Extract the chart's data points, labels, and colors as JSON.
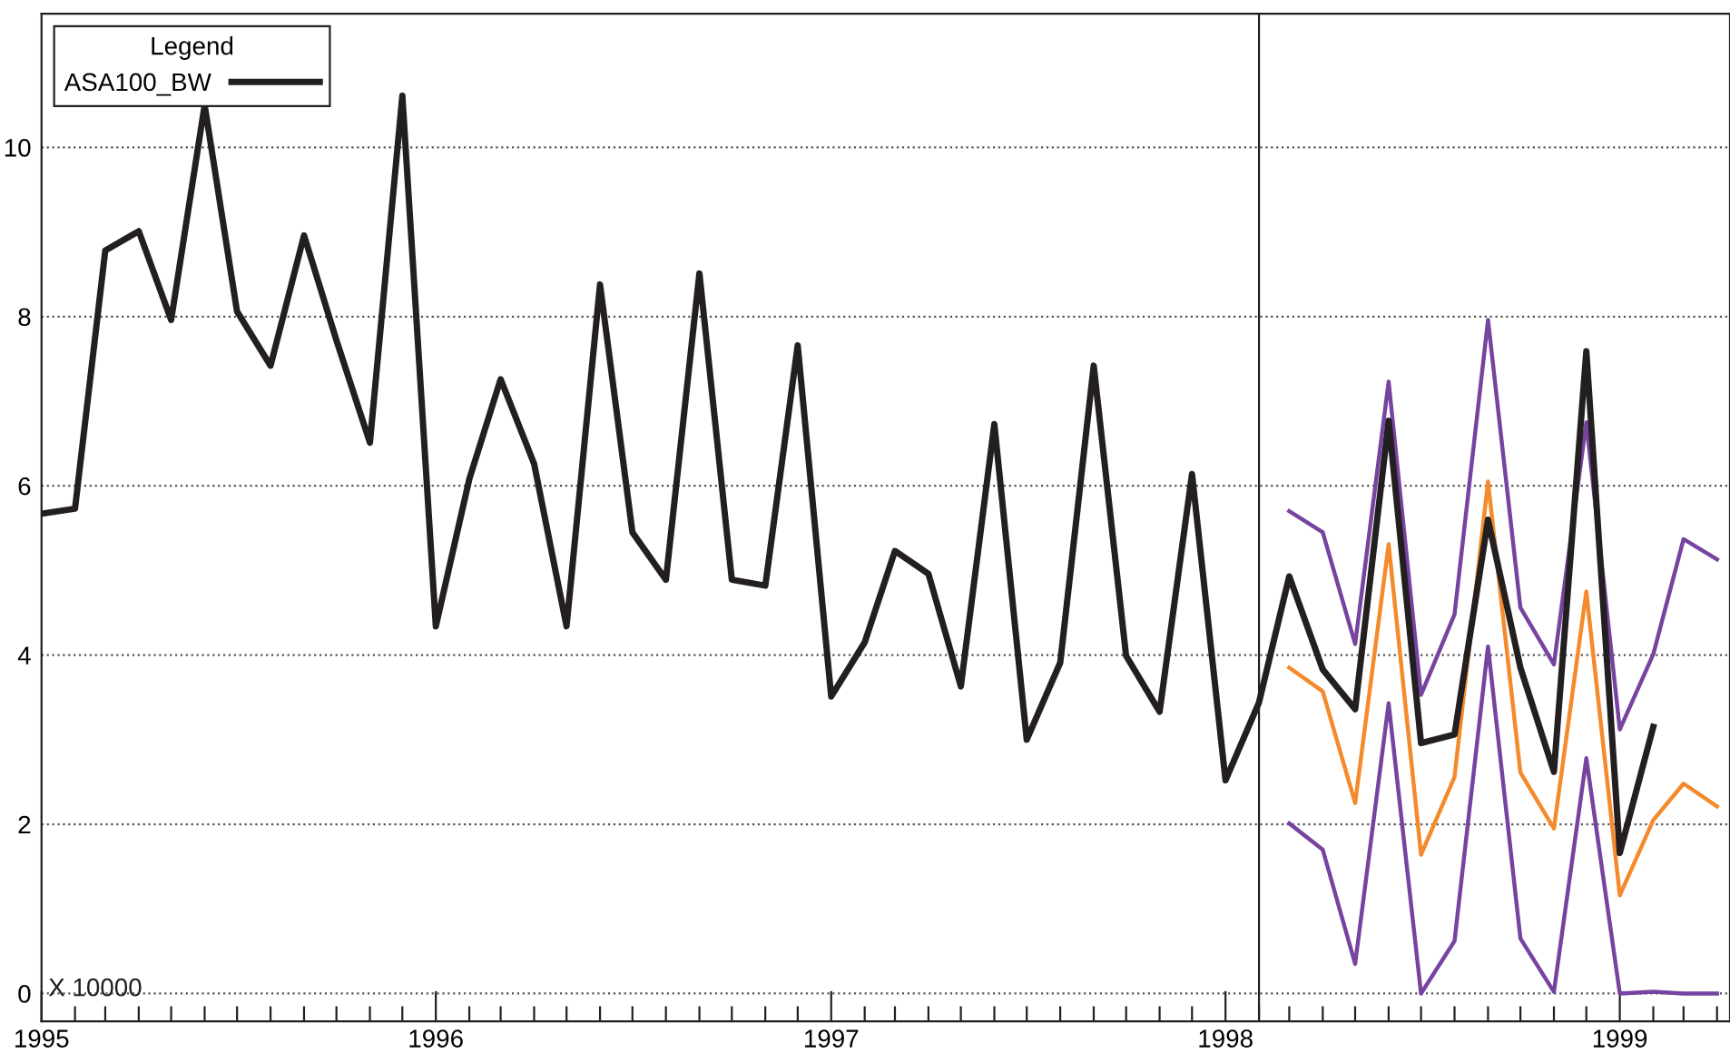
{
  "chart_data": {
    "type": "line",
    "legend_title": "Legend",
    "annotations": [
      "X 10000"
    ],
    "series": [
      {
        "name": "ASA100_BW",
        "color": "#231f20",
        "x": [
          "1995-01",
          "1995-02",
          "1995-03",
          "1995-04",
          "1995-05",
          "1995-06",
          "1995-07",
          "1995-08",
          "1995-09",
          "1995-10",
          "1995-11",
          "1995-12",
          "1996-01",
          "1996-02",
          "1996-03",
          "1996-04",
          "1996-05",
          "1996-06",
          "1996-07",
          "1996-08",
          "1996-09",
          "1996-10",
          "1996-11",
          "1996-12",
          "1997-01",
          "1997-02",
          "1997-03",
          "1997-04",
          "1997-05",
          "1997-06",
          "1997-07",
          "1997-08",
          "1997-09",
          "1997-10",
          "1997-11",
          "1997-12",
          "1998-01",
          "1998-02",
          "1998-03",
          "1998-04",
          "1998-05",
          "1998-06",
          "1998-07",
          "1998-08",
          "1998-09",
          "1998-10",
          "1998-11",
          "1998-12",
          "1999-01",
          "1999-02"
        ],
        "values": [
          5.67,
          5.73,
          8.78,
          9.01,
          7.96,
          10.5,
          8.06,
          7.42,
          8.96,
          7.72,
          6.51,
          10.61,
          4.34,
          6.08,
          7.26,
          6.26,
          4.34,
          8.38,
          5.45,
          4.89,
          8.51,
          4.89,
          4.82,
          7.66,
          3.51,
          4.15,
          5.23,
          4.96,
          3.63,
          6.73,
          3.0,
          3.91,
          7.42,
          3.99,
          3.33,
          6.14,
          2.52,
          3.44,
          4.93,
          3.83,
          3.36,
          6.77,
          2.96,
          3.06,
          5.6,
          3.85,
          2.62,
          7.59,
          1.66,
          3.15
        ]
      },
      {
        "color": "#f58a2c",
        "x": [
          "1998-03",
          "1998-04",
          "1998-05",
          "1998-06",
          "1998-07",
          "1998-08",
          "1998-09",
          "1998-10",
          "1998-11",
          "1998-12",
          "1999-01",
          "1999-02",
          "1999-03",
          "1999-04"
        ],
        "values": [
          3.85,
          3.57,
          2.25,
          5.31,
          1.64,
          2.56,
          6.05,
          2.61,
          1.95,
          4.75,
          1.16,
          2.05,
          2.48,
          2.21
        ]
      },
      {
        "color": "#7643a0",
        "x": [
          "1998-03",
          "1998-04",
          "1998-05",
          "1998-06",
          "1998-07",
          "1998-08",
          "1998-09",
          "1998-10",
          "1998-11",
          "1998-12",
          "1999-01",
          "1999-02",
          "1999-03",
          "1999-04"
        ],
        "values": [
          5.7,
          5.45,
          4.13,
          7.23,
          3.53,
          4.48,
          7.96,
          4.56,
          3.89,
          6.75,
          3.12,
          4.01,
          5.37,
          5.13
        ]
      },
      {
        "color": "#7643a0",
        "x": [
          "1998-03",
          "1998-04",
          "1998-05",
          "1998-06",
          "1998-07",
          "1998-08",
          "1998-09",
          "1998-10",
          "1998-11",
          "1998-12",
          "1999-01",
          "1999-02",
          "1999-03",
          "1999-04"
        ],
        "values": [
          2.01,
          1.7,
          0.35,
          3.43,
          0.0,
          0.62,
          4.1,
          0.65,
          0.02,
          2.78,
          0.0,
          0.02,
          0.0,
          0.0
        ]
      }
    ],
    "ylim": [
      -0.33,
      11.58
    ],
    "yticks": [
      0,
      2,
      4,
      6,
      8,
      10
    ],
    "xlim": [
      "1995-01",
      "1999-04-13"
    ],
    "xticks": [
      {
        "value": "1995-01",
        "label": "1995"
      },
      {
        "value": "1995-02",
        "label": null
      },
      {
        "value": "1995-03",
        "label": null
      },
      {
        "value": "1995-04",
        "label": null
      },
      {
        "value": "1995-05",
        "label": null
      },
      {
        "value": "1995-06",
        "label": null
      },
      {
        "value": "1995-07",
        "label": null
      },
      {
        "value": "1995-08",
        "label": null
      },
      {
        "value": "1995-09",
        "label": null
      },
      {
        "value": "1995-10",
        "label": null
      },
      {
        "value": "1995-11",
        "label": null
      },
      {
        "value": "1995-12",
        "label": null
      },
      {
        "value": "1996-01",
        "label": "1996"
      },
      {
        "value": "1996-02",
        "label": null
      },
      {
        "value": "1996-03",
        "label": null
      },
      {
        "value": "1996-04",
        "label": null
      },
      {
        "value": "1996-05",
        "label": null
      },
      {
        "value": "1996-06",
        "label": null
      },
      {
        "value": "1996-07",
        "label": null
      },
      {
        "value": "1996-08",
        "label": null
      },
      {
        "value": "1996-09",
        "label": null
      },
      {
        "value": "1996-10",
        "label": null
      },
      {
        "value": "1996-11",
        "label": null
      },
      {
        "value": "1996-12",
        "label": null
      },
      {
        "value": "1997-01",
        "label": "1997"
      },
      {
        "value": "1997-02",
        "label": null
      },
      {
        "value": "1997-03",
        "label": null
      },
      {
        "value": "1997-04",
        "label": null
      },
      {
        "value": "1997-05",
        "label": null
      },
      {
        "value": "1997-06",
        "label": null
      },
      {
        "value": "1997-07",
        "label": null
      },
      {
        "value": "1997-08",
        "label": null
      },
      {
        "value": "1997-09",
        "label": null
      },
      {
        "value": "1997-10",
        "label": null
      },
      {
        "value": "1997-11",
        "label": null
      },
      {
        "value": "1997-12",
        "label": null
      },
      {
        "value": "1998-01",
        "label": "1998"
      },
      {
        "value": "1998-02",
        "label": null
      },
      {
        "value": "1998-03",
        "label": null
      },
      {
        "value": "1998-04",
        "label": null
      },
      {
        "value": "1998-05",
        "label": null
      },
      {
        "value": "1998-06",
        "label": null
      },
      {
        "value": "1998-07",
        "label": null
      },
      {
        "value": "1998-08",
        "label": null
      },
      {
        "value": "1998-09",
        "label": null
      },
      {
        "value": "1998-10",
        "label": null
      },
      {
        "value": "1998-11",
        "label": null
      },
      {
        "value": "1998-12",
        "label": null
      },
      {
        "value": "1999-01",
        "label": "1999"
      },
      {
        "value": "1999-02",
        "label": null
      },
      {
        "value": "1999-03",
        "label": null
      },
      {
        "value": "1999-04",
        "label": null
      }
    ],
    "ref_lines": [
      {
        "axis": "x",
        "value": "1998-02",
        "color": "#231f20"
      }
    ],
    "grid": "y",
    "legend": "top left",
    "line_style": "solid",
    "marker": "none"
  }
}
